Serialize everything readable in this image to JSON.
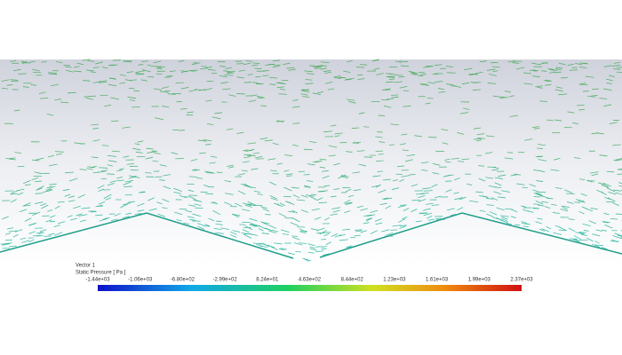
{
  "legend": {
    "title": "Vector 1",
    "variable": "Static Pressure [ Pa ]",
    "labels": [
      "-1.44e+03",
      "-1.06e+03",
      "-6.80e+02",
      "-2.99e+02",
      "8.24e+01",
      "4.63e+02",
      "8.44e+02",
      "1.23e+03",
      "1.61e+03",
      "1.99e+03",
      "2.37e+03"
    ]
  }
}
